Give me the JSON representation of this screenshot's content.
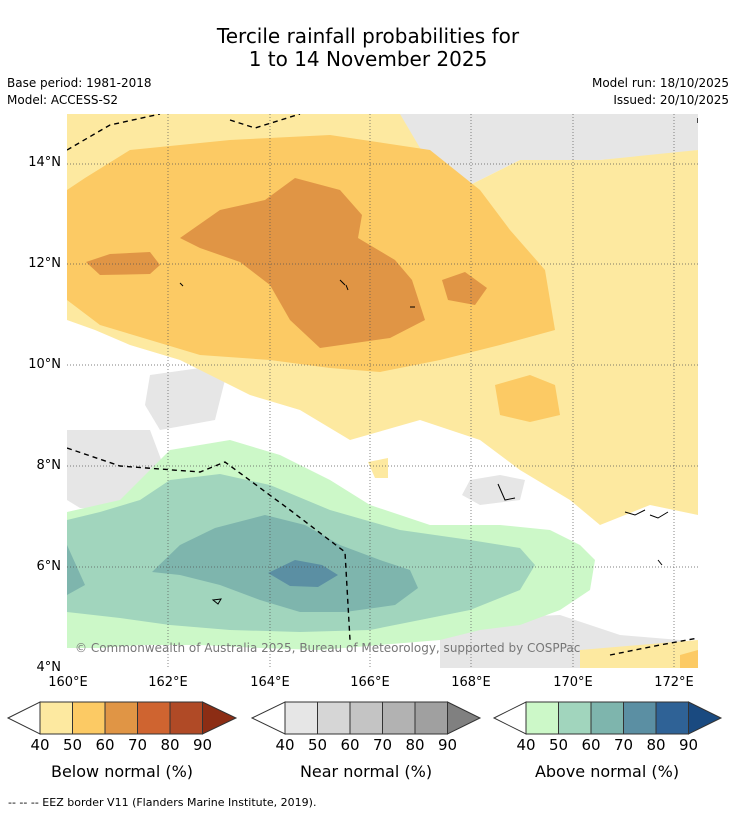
{
  "title_line1": "Tercile rainfall probabilities for",
  "title_line2": "1 to 14 November 2025",
  "base_period": "Base period: 1981-2018",
  "model": "Model: ACCESS-S2",
  "model_run": "Model run: 18/10/2025",
  "issued": "Issued: 20/10/2025",
  "copyright": "© Commonwealth of Australia 2025, Bureau of Meteorology, supported by COSPPac",
  "footnote": "--  --  -- EEZ border V11 (Flanders Marine Institute, 2019).",
  "map": {
    "lat_ticks": [
      "14°N",
      "12°N",
      "10°N",
      "8°N",
      "6°N",
      "4°N"
    ],
    "lon_ticks": [
      "160°E",
      "162°E",
      "164°E",
      "166°E",
      "168°E",
      "170°E",
      "172°E"
    ]
  },
  "legends": {
    "below": {
      "label": "Below normal (%)",
      "ticks": [
        "40",
        "50",
        "60",
        "70",
        "80",
        "90"
      ],
      "colors": [
        "#fde9a0",
        "#fcca64",
        "#e09545",
        "#cf6430",
        "#b04a26",
        "#8c2d14"
      ]
    },
    "near": {
      "label": "Near normal (%)",
      "ticks": [
        "40",
        "50",
        "60",
        "70",
        "80",
        "90"
      ],
      "colors": [
        "#e6e6e6",
        "#d6d6d6",
        "#c4c4c4",
        "#b2b2b2",
        "#a0a0a0",
        "#808080"
      ]
    },
    "above": {
      "label": "Above normal (%)",
      "ticks": [
        "40",
        "50",
        "60",
        "70",
        "80",
        "90"
      ],
      "colors": [
        "#ccf8c8",
        "#a1d5bd",
        "#7eb5ad",
        "#5b8fa3",
        "#2f6296",
        "#1a4a80"
      ]
    }
  }
}
